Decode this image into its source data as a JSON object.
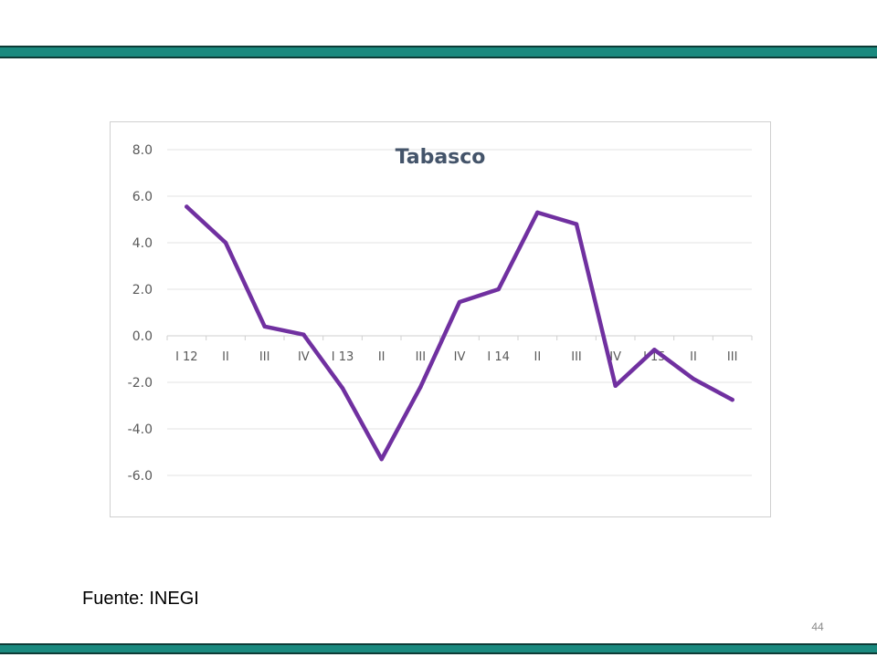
{
  "slide": {
    "source": "Fuente: INEGI",
    "page_number": "44"
  },
  "colors": {
    "band": "#1a8a7f",
    "band_border": "#0d3b36",
    "line": "#7030a0",
    "grid": "#e3e3e3",
    "tick_text": "#595959",
    "title_text": "#44546a"
  },
  "chart_data": {
    "type": "line",
    "title": "Tabasco",
    "xlabel": "",
    "ylabel": "",
    "categories": [
      "I 12",
      "II",
      "III",
      "IV",
      "I 13",
      "II",
      "III",
      "IV",
      "I 14",
      "II",
      "III",
      "IV",
      "I 15",
      "II",
      "III"
    ],
    "series": [
      {
        "values": [
          5.55,
          4.0,
          0.4,
          0.05,
          -2.25,
          -5.3,
          -2.2,
          1.45,
          2.0,
          5.3,
          4.8,
          -2.15,
          -0.6,
          -1.85,
          -2.75
        ]
      }
    ],
    "ylim": [
      -6.0,
      8.0
    ],
    "yticks": [
      "8.0",
      "6.0",
      "4.0",
      "2.0",
      "0.0",
      "-2.0",
      "-4.0",
      "-6.0"
    ],
    "grid": true,
    "legend": "none"
  }
}
